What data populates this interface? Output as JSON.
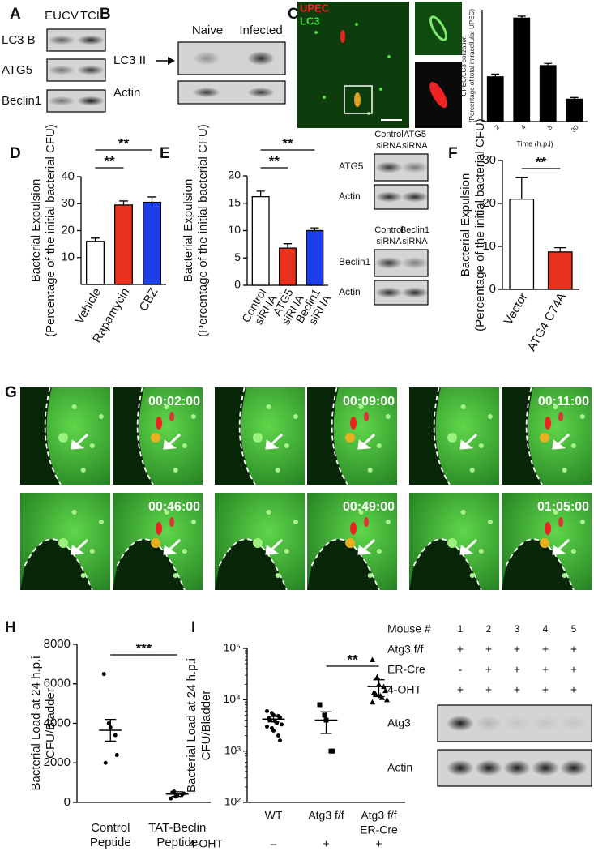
{
  "panel_labels": [
    "A",
    "B",
    "C",
    "D",
    "E",
    "F",
    "G",
    "H",
    "I"
  ],
  "blots": {
    "A": {
      "columns": [
        "EUCV",
        "TCL"
      ],
      "rows": [
        "LC3 B",
        "ATG5",
        "Beclin1"
      ]
    },
    "B": {
      "columns": [
        "Naive",
        "Infected"
      ],
      "rows": [
        "LC3 II",
        "Actin"
      ]
    },
    "E1": {
      "columns": [
        [
          "Control",
          "siRNA"
        ],
        [
          "ATG5",
          "siRNA"
        ]
      ],
      "rows": [
        "ATG5",
        "Actin"
      ]
    },
    "E2": {
      "columns": [
        [
          "Control",
          "siRNA"
        ],
        [
          "Beclin1",
          "siRNA"
        ]
      ],
      "rows": [
        "Beclin1",
        "Actin"
      ]
    },
    "I": {
      "header": "Mouse #",
      "lanes": [
        "1",
        "2",
        "3",
        "4",
        "5"
      ],
      "conditions": [
        {
          "name": "Atg3 f/f",
          "marks": [
            "+",
            "+",
            "+",
            "+",
            "+"
          ]
        },
        {
          "name": "ER-Cre",
          "marks": [
            "-",
            "+",
            "+",
            "+",
            "+"
          ]
        },
        {
          "name": "4-OHT",
          "marks": [
            "+",
            "+",
            "+",
            "+",
            "+"
          ]
        }
      ],
      "rows": [
        "Atg3",
        "Actin"
      ]
    }
  },
  "microscopy": {
    "C": {
      "channels": [
        "UPEC",
        "LC3"
      ]
    },
    "G": {
      "timestamps": [
        "00:02:00",
        "00:09:00",
        "00:11:00",
        "00:46:00",
        "00:49:00",
        "01:05:00"
      ]
    }
  },
  "chart_data": [
    {
      "type": "bar",
      "y_label": [
        "UPEC/LC3 colization",
        "(Percentage of total intracellular UPEC)"
      ],
      "x_label": "Time (h.p.i)",
      "categories": [
        "2",
        "4",
        "8",
        "30"
      ],
      "values": [
        16,
        37,
        20,
        8
      ],
      "errors": [
        1,
        0.7,
        0.8,
        0.6
      ],
      "colors": [
        "#000000",
        "#000000",
        "#000000",
        "#000000"
      ],
      "ylim": [
        0,
        40
      ]
    },
    {
      "type": "bar",
      "y_label": [
        "Bacterial Expulsion",
        "(Percentage of the initial bacterial CFU)"
      ],
      "categories": [
        [
          "Vehicle"
        ],
        [
          "Rapamycin"
        ],
        [
          "CBZ"
        ]
      ],
      "values": [
        16,
        29.5,
        30.5
      ],
      "errors": [
        1.2,
        1.5,
        2
      ],
      "colors": [
        "#ffffff",
        "#e8321e",
        "#1d3fe8"
      ],
      "ylim": [
        0,
        40
      ],
      "yticks": [
        10,
        20,
        30,
        40
      ],
      "significance": [
        {
          "label": "**",
          "between": [
            0,
            1
          ]
        },
        {
          "label": "**",
          "between": [
            0,
            2
          ]
        }
      ]
    },
    {
      "type": "bar",
      "y_label": [
        "Bacterial Expulsion",
        "(Percentage of the initial bacterial CFU)"
      ],
      "categories": [
        [
          "Control",
          "siRNA"
        ],
        [
          "ATG5",
          "siRNA"
        ],
        [
          "Beclin1",
          "siRNA"
        ]
      ],
      "values": [
        16.2,
        6.8,
        10
      ],
      "errors": [
        1,
        0.8,
        0.5
      ],
      "colors": [
        "#ffffff",
        "#e8321e",
        "#1d3fe8"
      ],
      "ylim": [
        0,
        20
      ],
      "yticks": [
        0,
        5,
        10,
        15,
        20
      ],
      "significance": [
        {
          "label": "**",
          "between": [
            0,
            1
          ]
        },
        {
          "label": "**",
          "between": [
            0,
            2
          ]
        }
      ]
    },
    {
      "type": "bar",
      "y_label": [
        "Bacterial Expulsion",
        "(Percentage of the initial bacterial CFU)"
      ],
      "categories": [
        [
          "Vector"
        ],
        [
          "ATG4 C74A"
        ]
      ],
      "values": [
        21,
        8.7
      ],
      "errors": [
        5,
        1
      ],
      "colors": [
        "#ffffff",
        "#e8321e"
      ],
      "ylim": [
        0,
        30
      ],
      "yticks": [
        0,
        10,
        20,
        30
      ],
      "significance": [
        {
          "label": "**",
          "between": [
            0,
            1
          ]
        }
      ]
    },
    {
      "type": "scatter",
      "y_label": [
        "Bacterial Load at 24 h.p.i",
        "CFU/Bladder"
      ],
      "ylim": [
        0,
        8000
      ],
      "yticks": [
        0,
        2000,
        4000,
        6000,
        8000
      ],
      "series": [
        {
          "name": [
            "Control",
            "Peptide"
          ],
          "marker": "circle",
          "values": [
            6500,
            4000,
            3800,
            3400,
            2400,
            2000
          ],
          "mean": 3650,
          "sem": 550
        },
        {
          "name": [
            "TAT-Beclin",
            "Peptide"
          ],
          "marker": "circle",
          "values": [
            200,
            300,
            350,
            400,
            450,
            500,
            550
          ],
          "mean": 420,
          "sem": 120
        }
      ],
      "significance": [
        {
          "label": "***",
          "between": [
            0,
            1
          ]
        }
      ]
    },
    {
      "type": "scatter",
      "log_scale": true,
      "y_label": [
        "Bacterial Load at 24 h.p.i",
        "CFU/Bladder"
      ],
      "ylim": [
        100,
        100000
      ],
      "yticks": [
        {
          "value": 100,
          "label": "10²"
        },
        {
          "value": 1000,
          "label": "10³"
        },
        {
          "value": 10000,
          "label": "10⁴"
        },
        {
          "value": 100000,
          "label": "10⁵"
        }
      ],
      "series": [
        {
          "name": [
            "WT"
          ],
          "marker": "circle",
          "values": [
            6000,
            5500,
            5000,
            4800,
            4500,
            4300,
            4000,
            3800,
            3500,
            3300,
            3000,
            2800,
            2500,
            2000,
            1600
          ],
          "mean": 4200,
          "sem": 500
        },
        {
          "name": [
            "Atg3 f/f"
          ],
          "marker": "square",
          "values": [
            8000,
            5000,
            4000,
            1000,
            1000
          ],
          "mean": 4000,
          "sem": 1800
        },
        {
          "name": [
            "Atg3 f/f",
            "ER-Cre"
          ],
          "marker": "triangle",
          "values": [
            60000,
            28000,
            20000,
            18000,
            15000,
            14000,
            13000,
            12000,
            11000,
            10000,
            9000
          ],
          "mean": 18000,
          "sem": 6500
        }
      ],
      "treatment": {
        "label": "4-OHT",
        "marks": [
          "–",
          "+",
          "+"
        ]
      },
      "significance": [
        {
          "label": "**",
          "between": [
            1,
            2
          ]
        }
      ]
    }
  ]
}
